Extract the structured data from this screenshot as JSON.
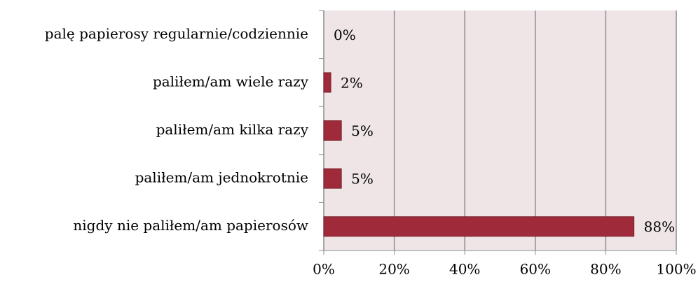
{
  "chart_data": {
    "type": "hbar",
    "categories": [
      "palę papierosy regularnie/codziennie",
      "paliłem/am wiele razy",
      "paliłem/am kilka razy",
      "paliłem/am jednokrotnie",
      "nigdy nie paliłem/am papierosów"
    ],
    "values": [
      0,
      2,
      5,
      5,
      88
    ],
    "value_labels": [
      "0%",
      "2%",
      "5%",
      "5%",
      "88%"
    ],
    "color": "#9e2a3a",
    "xlim": [
      0,
      100
    ],
    "xticks": [
      {
        "value": 0,
        "label": "0%"
      },
      {
        "value": 20,
        "label": "20%"
      },
      {
        "value": 40,
        "label": "40%"
      },
      {
        "value": 60,
        "label": "60%"
      },
      {
        "value": 80,
        "label": "80%"
      },
      {
        "value": 100,
        "label": "100%"
      }
    ],
    "grid": true
  }
}
